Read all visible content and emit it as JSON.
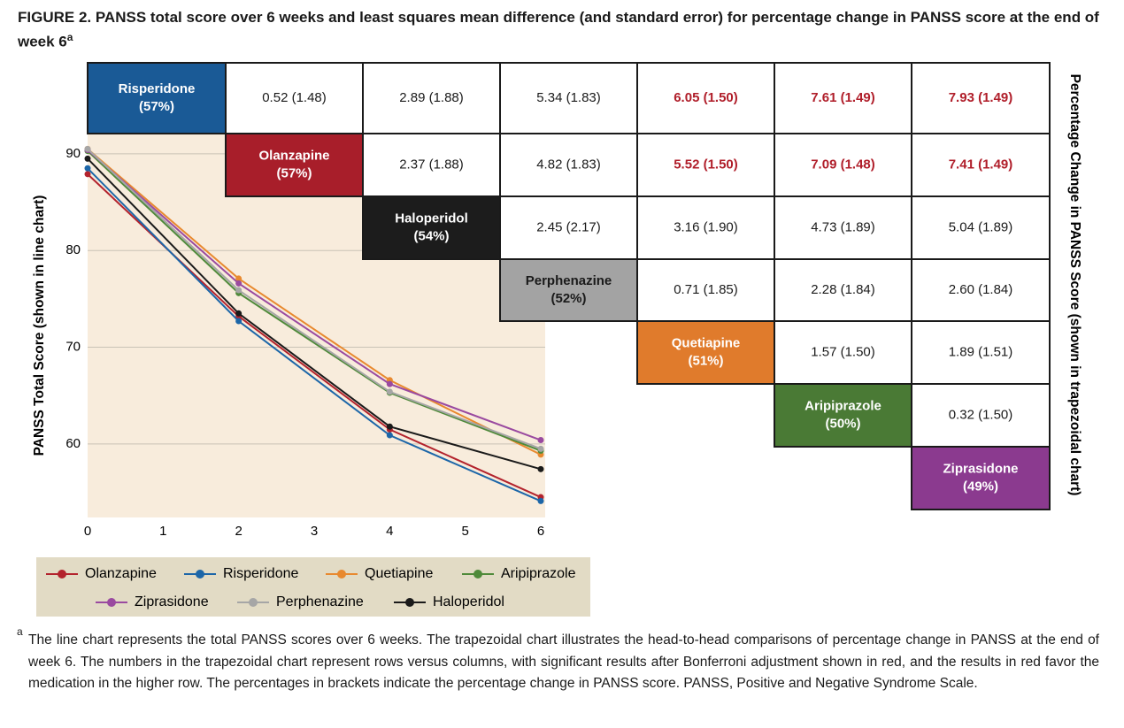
{
  "title": "FIGURE 2. PANSS total score over 6 weeks and least squares mean difference (and standard error) for percentage change in PANSS score at the end of week 6",
  "title_note": "a",
  "chart_data": {
    "type": "line",
    "x": [
      0,
      2,
      4,
      6
    ],
    "xlim": [
      0,
      6
    ],
    "xticks": [
      0,
      1,
      2,
      3,
      4,
      5,
      6
    ],
    "ylim": [
      52.4,
      99.5
    ],
    "yticks": [
      60,
      70,
      80,
      90
    ],
    "grid": true,
    "y_label": "PANSS Total Score (shown in line chart)",
    "y2_label": "Percentage Change in PANSS Score (shown in trapezoidal chart)",
    "series": [
      {
        "name": "Olanzapine",
        "color": "#b3232d",
        "values": [
          87.9,
          73.2,
          61.5,
          54.5
        ]
      },
      {
        "name": "Risperidone",
        "color": "#1c66a8",
        "values": [
          88.5,
          72.7,
          60.9,
          54.1
        ]
      },
      {
        "name": "Quetiapine",
        "color": "#e8892f",
        "values": [
          90.5,
          77.1,
          66.6,
          58.9
        ]
      },
      {
        "name": "Aripiprazole",
        "color": "#4f8a3a",
        "values": [
          90.3,
          75.6,
          65.3,
          59.3
        ]
      },
      {
        "name": "Ziprasidone",
        "color": "#9a4aa0",
        "values": [
          90.4,
          76.6,
          66.2,
          60.4
        ]
      },
      {
        "name": "Perphenazine",
        "color": "#a6a6a6",
        "values": [
          90.5,
          75.9,
          65.4,
          59.5
        ]
      },
      {
        "name": "Haloperidol",
        "color": "#1a1a1a",
        "values": [
          89.5,
          73.5,
          61.8,
          57.4
        ]
      }
    ]
  },
  "trapezoid": {
    "drugs": [
      {
        "name": "Risperidone",
        "percent": "(57%)",
        "color": "#1a5a96",
        "text_color": "#ffffff"
      },
      {
        "name": "Olanzapine",
        "percent": "(57%)",
        "color": "#a81e2a",
        "text_color": "#ffffff"
      },
      {
        "name": "Haloperidol",
        "percent": "(54%)",
        "color": "#1c1c1c",
        "text_color": "#ffffff"
      },
      {
        "name": "Perphenazine",
        "percent": "(52%)",
        "color": "#a3a3a3",
        "text_color": "#1a1a1a"
      },
      {
        "name": "Quetiapine",
        "percent": "(51%)",
        "color": "#e07b2c",
        "text_color": "#ffffff"
      },
      {
        "name": "Aripiprazole",
        "percent": "(50%)",
        "color": "#4a7a35",
        "text_color": "#ffffff"
      },
      {
        "name": "Ziprasidone",
        "percent": "(49%)",
        "color": "#8b3a8f",
        "text_color": "#ffffff"
      }
    ],
    "significant_color": "#b01e2a",
    "rows": [
      [
        {
          "text": "0.52 (1.48)",
          "significant": false
        },
        {
          "text": "2.89 (1.88)",
          "significant": false
        },
        {
          "text": "5.34 (1.83)",
          "significant": false
        },
        {
          "text": "6.05 (1.50)",
          "significant": true
        },
        {
          "text": "7.61 (1.49)",
          "significant": true
        },
        {
          "text": "7.93 (1.49)",
          "significant": true
        }
      ],
      [
        {
          "text": "2.37 (1.88)",
          "significant": false
        },
        {
          "text": "4.82 (1.83)",
          "significant": false
        },
        {
          "text": "5.52 (1.50)",
          "significant": true
        },
        {
          "text": "7.09 (1.48)",
          "significant": true
        },
        {
          "text": "7.41 (1.49)",
          "significant": true
        }
      ],
      [
        {
          "text": "2.45 (2.17)",
          "significant": false
        },
        {
          "text": "3.16 (1.90)",
          "significant": false
        },
        {
          "text": "4.73 (1.89)",
          "significant": false
        },
        {
          "text": "5.04 (1.89)",
          "significant": false
        }
      ],
      [
        {
          "text": "0.71 (1.85)",
          "significant": false
        },
        {
          "text": "2.28 (1.84)",
          "significant": false
        },
        {
          "text": "2.60 (1.84)",
          "significant": false
        }
      ],
      [
        {
          "text": "1.57 (1.50)",
          "significant": false
        },
        {
          "text": "1.89 (1.51)",
          "significant": false
        }
      ],
      [
        {
          "text": "0.32 (1.50)",
          "significant": false
        }
      ]
    ]
  },
  "footnote": {
    "marker": "a",
    "text": "The line chart represents the total PANSS scores over 6 weeks. The trapezoidal chart illustrates the head-to-head comparisons of percentage change in PANSS at the end of week 6. The numbers in the trapezoidal chart represent rows versus columns, with significant results after Bonferroni adjustment shown in red, and the results in red favor the medication in the higher row. The percentages in brackets indicate the percentage change in PANSS score. PANSS, Positive and Negative Syndrome Scale."
  }
}
